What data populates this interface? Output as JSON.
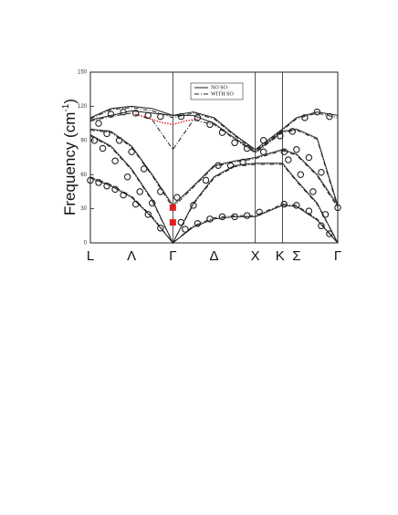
{
  "chart_data": {
    "type": "line",
    "ylabel": "Frequency (cm",
    "ylabel_sup": "-1",
    "ylabel_end": ")",
    "xlim": [
      0,
      3
    ],
    "ylim": [
      0,
      150
    ],
    "yticks": [
      0,
      30,
      60,
      90,
      120,
      150
    ],
    "xticks": [
      {
        "value": 0,
        "label": "L"
      },
      {
        "value": 0.5,
        "label": "Λ"
      },
      {
        "value": 1,
        "label": "Γ"
      },
      {
        "value": 1.5,
        "label": "Δ"
      },
      {
        "value": 2,
        "label": "X"
      },
      {
        "value": 2.3,
        "label": "K"
      },
      {
        "value": 2.5,
        "label": "Σ"
      },
      {
        "value": 3,
        "label": "Γ"
      }
    ],
    "vlines": [
      1,
      2,
      2.33
    ],
    "x": [
      0,
      0.25,
      0.5,
      0.75,
      1,
      1.25,
      1.5,
      1.75,
      2,
      2.33,
      2.5,
      2.75,
      3
    ],
    "series": [
      {
        "name": "NO SO",
        "color": "#222222",
        "style": "solid",
        "branches": [
          [
            57,
            50,
            40,
            22,
            0,
            14,
            21,
            23,
            23,
            33,
            32,
            20,
            0
          ],
          [
            95,
            85,
            65,
            38,
            0,
            35,
            58,
            68,
            70,
            70,
            55,
            35,
            0
          ],
          [
            100,
            98,
            85,
            60,
            33,
            50,
            68,
            72,
            75,
            82,
            78,
            60,
            33
          ],
          [
            108,
            112,
            116,
            114,
            112,
            112,
            105,
            92,
            80,
            98,
            100,
            92,
            33
          ],
          [
            110,
            118,
            120,
            118,
            112,
            115,
            110,
            95,
            82,
            100,
            110,
            115,
            112
          ]
        ]
      },
      {
        "name": "WITH SO",
        "color": "#222222",
        "style": "dashdot",
        "branches": [
          [
            58,
            51,
            41,
            23,
            0,
            15,
            22,
            24,
            24,
            34,
            33,
            21,
            0
          ],
          [
            94,
            84,
            64,
            37,
            0,
            34,
            57,
            67,
            69,
            69,
            54,
            34,
            0
          ],
          [
            99,
            97,
            84,
            59,
            31,
            49,
            67,
            71,
            74,
            81,
            77,
            59,
            31
          ],
          [
            107,
            111,
            114,
            108,
            82,
            108,
            104,
            91,
            79,
            97,
            99,
            91,
            31
          ],
          [
            109,
            117,
            119,
            116,
            110,
            114,
            109,
            94,
            81,
            99,
            109,
            114,
            110
          ]
        ]
      }
    ],
    "points": {
      "color": "#222222",
      "x": [
        0,
        0.1,
        0.2,
        0.3,
        0.4,
        0.55,
        0.7,
        0.85,
        1.15,
        1.3,
        1.45,
        1.6,
        1.75,
        1.9,
        2.05,
        2.35,
        2.5,
        2.65,
        2.8,
        2.9,
        0.05,
        0.15,
        0.3,
        0.45,
        0.6,
        0.75,
        1.1,
        1.25,
        1.4,
        1.55,
        1.7,
        1.85,
        2.4,
        2.55,
        2.7,
        2.85,
        0.2,
        0.35,
        0.5,
        0.65,
        0.85,
        1.05,
        2.1,
        2.35,
        2.5,
        2.65,
        2.8,
        3.0,
        0.1,
        0.25,
        0.4,
        0.55,
        0.7,
        0.85,
        1.1,
        1.3,
        1.45,
        1.6,
        1.75,
        1.9,
        2.1,
        2.3,
        2.45,
        2.6,
        2.75,
        2.9
      ],
      "values": [
        55,
        53,
        50,
        47,
        42,
        34,
        25,
        13,
        12,
        17,
        21,
        23,
        23,
        24,
        27,
        34,
        33,
        28,
        15,
        8,
        90,
        83,
        72,
        58,
        45,
        35,
        18,
        33,
        55,
        68,
        68,
        71,
        73,
        60,
        45,
        25,
        96,
        90,
        80,
        65,
        45,
        40,
        80,
        80,
        82,
        75,
        62,
        31,
        105,
        113,
        115,
        114,
        112,
        111,
        111,
        110,
        104,
        97,
        88,
        83,
        90,
        94,
        98,
        110,
        115,
        111
      ]
    },
    "highlight": {
      "color": "#e02020",
      "x": [
        0.55,
        0.7,
        0.85,
        1,
        1.15,
        1.3
      ],
      "values": [
        113,
        110,
        106,
        104,
        107,
        109
      ]
    },
    "red_points": {
      "color": "#e02020",
      "x": [
        1,
        1
      ],
      "values": [
        31,
        18
      ]
    }
  }
}
